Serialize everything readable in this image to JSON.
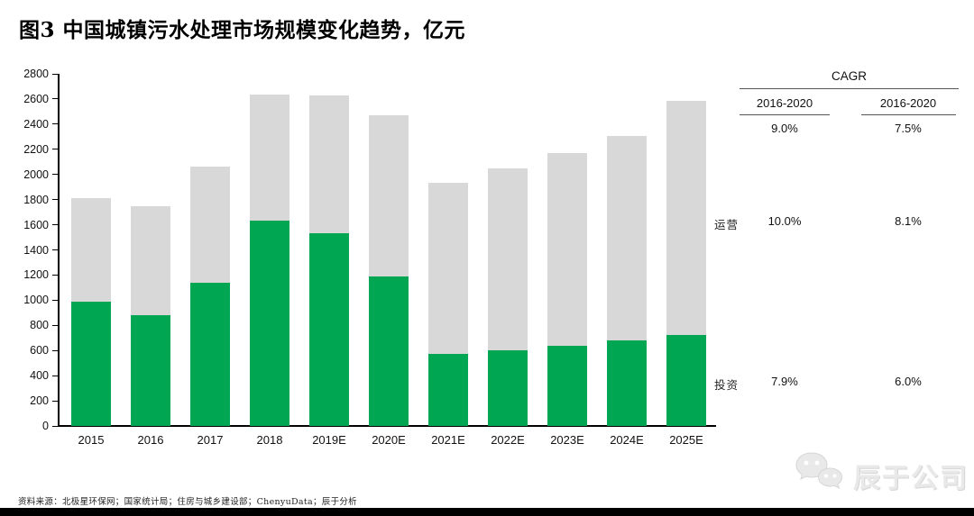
{
  "title": "图3 中国城镇污水处理市场规模变化趋势，亿元",
  "chart_data": {
    "type": "bar",
    "stacked": true,
    "title": "中国城镇污水处理市场规模变化趋势",
    "unit": "亿元",
    "categories": [
      "2015",
      "2016",
      "2017",
      "2018",
      "2019E",
      "2020E",
      "2021E",
      "2022E",
      "2023E",
      "2024E",
      "2025E"
    ],
    "series": [
      {
        "name": "投资",
        "key": "investment",
        "color": "#00A651",
        "values": [
          990,
          880,
          1140,
          1630,
          1530,
          1190,
          570,
          600,
          640,
          680,
          720
        ]
      },
      {
        "name": "运营",
        "key": "operations",
        "color": "#D8D8D8",
        "values": [
          820,
          870,
          925,
          1005,
          1100,
          1280,
          1360,
          1445,
          1530,
          1625,
          1865
        ]
      }
    ],
    "totals": [
      1810,
      1750,
      2065,
      2635,
      2630,
      2470,
      1930,
      2045,
      2170,
      2305,
      2585
    ],
    "ylim": [
      0,
      2800
    ],
    "ytick_step": 200,
    "grid": false,
    "legend_position": "none",
    "xlabel": "",
    "ylabel": ""
  },
  "cagr_table": {
    "title": "CAGR",
    "columns": [
      "2016-2020",
      "2016-2020"
    ],
    "total_row": [
      "9.0%",
      "7.5%"
    ],
    "rows": [
      {
        "label": "运营",
        "values": [
          "10.0%",
          "8.1%"
        ]
      },
      {
        "label": "投资",
        "values": [
          "7.9%",
          "6.0%"
        ]
      }
    ]
  },
  "footer": {
    "source": "资料来源：北极星环保网；国家统计局；住房与城乡建设部；ChenyuData；辰于分析"
  },
  "watermark": {
    "icon": "wechat-icon",
    "text": "辰于公司"
  },
  "colors": {
    "investment_green": "#00A651",
    "operations_gray": "#D8D8D8",
    "axis_black": "#000000",
    "watermark_gray": "#e9e9e9"
  }
}
